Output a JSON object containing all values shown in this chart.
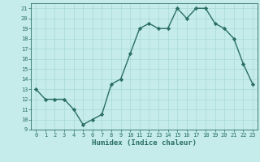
{
  "x": [
    0,
    1,
    2,
    3,
    4,
    5,
    6,
    7,
    8,
    9,
    10,
    11,
    12,
    13,
    14,
    15,
    16,
    17,
    18,
    19,
    20,
    21,
    22,
    23
  ],
  "y": [
    13,
    12,
    12,
    12,
    11,
    9.5,
    10,
    10.5,
    13.5,
    14,
    16.5,
    19,
    19.5,
    19,
    19,
    21,
    20,
    21,
    21,
    19.5,
    19,
    18,
    15.5,
    13.5
  ],
  "xlabel": "Humidex (Indice chaleur)",
  "line_color": "#2a6e64",
  "marker_color": "#2a6e64",
  "bg_color": "#c5ecea",
  "grid_color": "#a8d8d4",
  "spine_color": "#2a6e64",
  "ylim": [
    9,
    21.5
  ],
  "xlim": [
    -0.5,
    23.5
  ],
  "yticks": [
    9,
    10,
    11,
    12,
    13,
    14,
    15,
    16,
    17,
    18,
    19,
    20,
    21
  ],
  "xticks": [
    0,
    1,
    2,
    3,
    4,
    5,
    6,
    7,
    8,
    9,
    10,
    11,
    12,
    13,
    14,
    15,
    16,
    17,
    18,
    19,
    20,
    21,
    22,
    23
  ],
  "tick_fontsize": 5.0,
  "xlabel_fontsize": 6.5,
  "linewidth": 1.0,
  "markersize": 2.2
}
